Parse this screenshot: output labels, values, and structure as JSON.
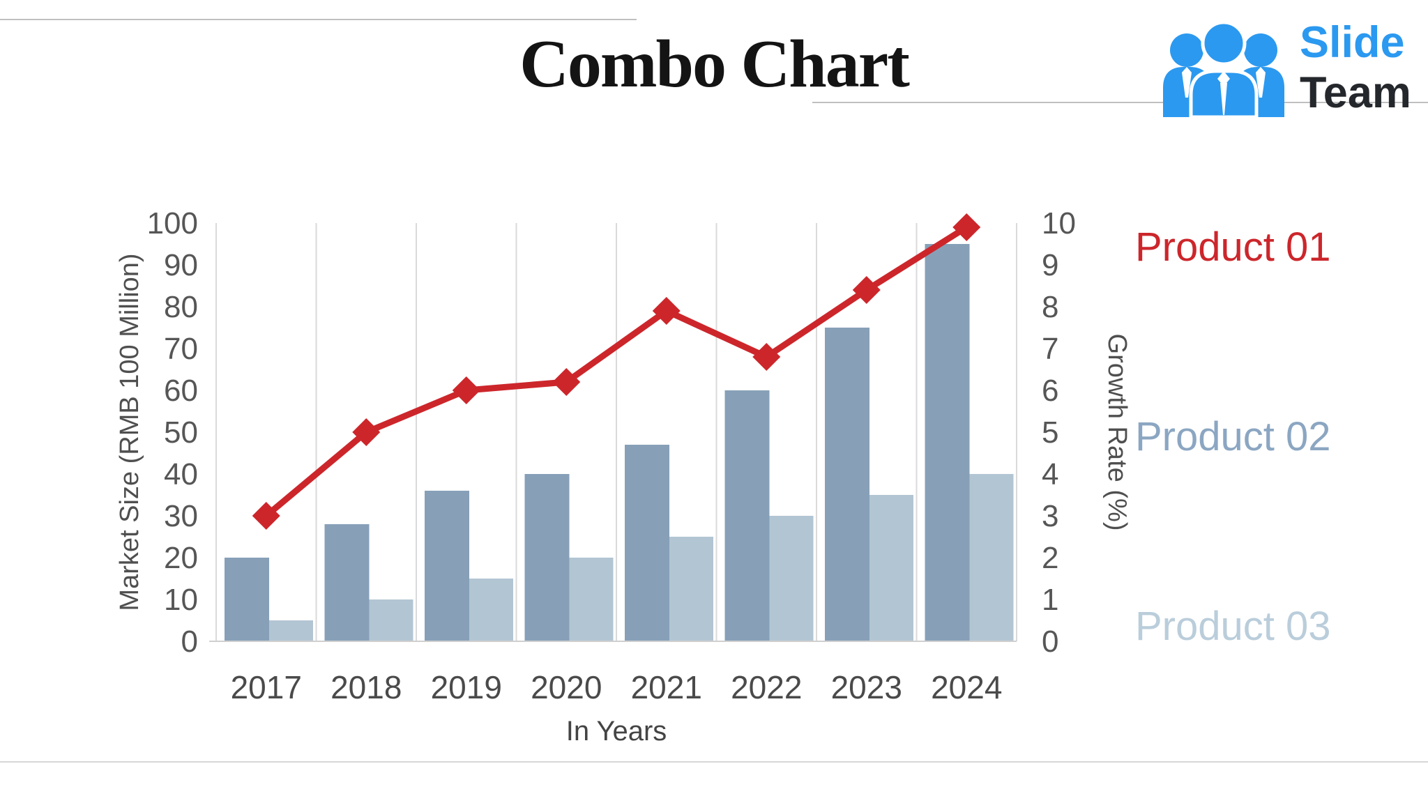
{
  "slide": {
    "title": "Combo Chart"
  },
  "logo": {
    "slide": "Slide",
    "team": "Team",
    "blue": "#2b99f0",
    "dark": "#24272b",
    "icon": "team-people-icon"
  },
  "legend": {
    "position": "right",
    "items": [
      {
        "label": "Product 01",
        "color": "#cc262b"
      },
      {
        "label": "Product 02",
        "color": "#8ba6c2"
      },
      {
        "label": "Product 03",
        "color": "#bacddb"
      }
    ]
  },
  "chart_data": {
    "type": "combo",
    "categories": [
      "2017",
      "2018",
      "2019",
      "2020",
      "2021",
      "2022",
      "2023",
      "2024"
    ],
    "series": [
      {
        "name": "Product 01",
        "type": "line",
        "axis": "right",
        "color": "#cc262b",
        "marker": "diamond",
        "values": [
          3,
          5,
          6,
          6.2,
          7.9,
          6.8,
          8.4,
          9.9
        ]
      },
      {
        "name": "Product 02",
        "type": "bar",
        "axis": "left",
        "color": "#87a0b8",
        "values": [
          20,
          28,
          36,
          40,
          47,
          60,
          75,
          95
        ]
      },
      {
        "name": "Product 03",
        "type": "bar",
        "axis": "left",
        "color": "#b2c5d3",
        "values": [
          5,
          10,
          15,
          20,
          25,
          30,
          35,
          40
        ]
      }
    ],
    "xlabel": "In Years",
    "ylabel_left": "Market Size (RMB 100 Million)",
    "ylabel_right": "Growth Rate (%)",
    "ylim_left": [
      0,
      100
    ],
    "ytick_step_left": 10,
    "ylim_right": [
      0,
      10
    ],
    "ytick_step_right": 1,
    "grid": "vertical lines at category boundaries only",
    "legend_position": "right",
    "axis_text_color": "#565656"
  }
}
